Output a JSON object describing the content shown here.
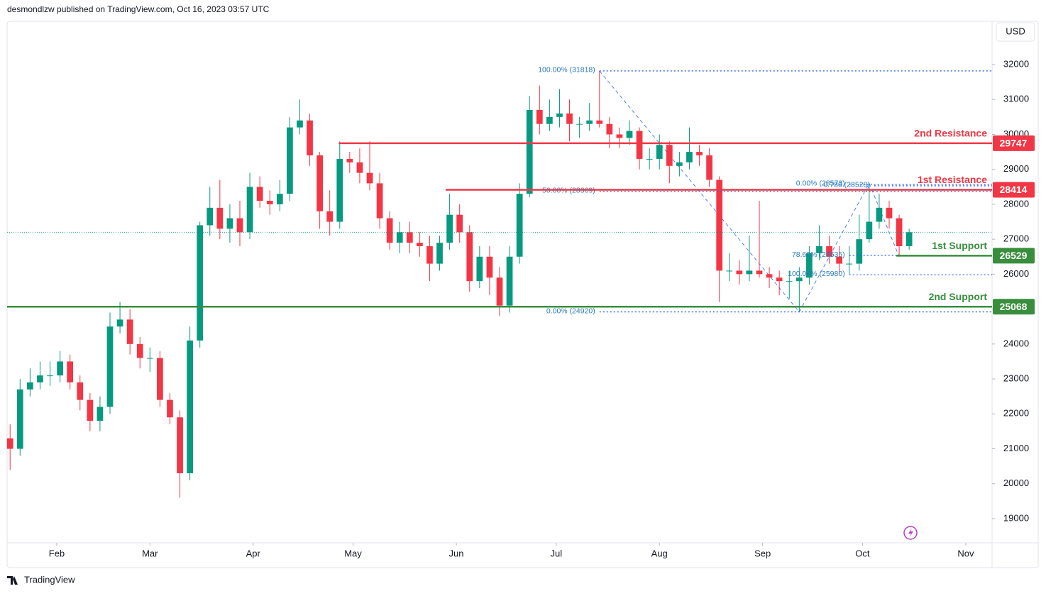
{
  "header": {
    "text": "desmondlzw published on TradingView.com, Oct 16, 2023 03:57 UTC"
  },
  "footer": {
    "brand": "TradingView"
  },
  "chart_data": {
    "type": "candlestick",
    "currency": "USD",
    "up_color": "#089981",
    "down_color": "#f23645",
    "xlim": [
      -0.3,
      98.3
    ],
    "xticks": [
      {
        "value": 4.67,
        "label": "Feb"
      },
      {
        "value": 14,
        "label": "Mar"
      },
      {
        "value": 24.33,
        "label": "Apr"
      },
      {
        "value": 34.33,
        "label": "May"
      },
      {
        "value": 44.67,
        "label": "Jun"
      },
      {
        "value": 54.67,
        "label": "Jul"
      },
      {
        "value": 65,
        "label": "Aug"
      },
      {
        "value": 75.33,
        "label": "Sep"
      },
      {
        "value": 85.33,
        "label": "Oct"
      },
      {
        "value": 95.67,
        "label": "Nov"
      }
    ],
    "ylim": [
      18309,
      33239
    ],
    "yticks": [
      19000,
      20000,
      21000,
      22000,
      23000,
      24000,
      25000,
      26000,
      27000,
      28000,
      29000,
      30000,
      31000,
      32000
    ],
    "open": [
      21300,
      21000,
      22700,
      22900,
      23100,
      23100,
      23500,
      22900,
      22400,
      21800,
      22200,
      24500,
      24700,
      24000,
      23600,
      23600,
      22400,
      21900,
      20300,
      24100,
      27400,
      27900,
      27300,
      27600,
      27200,
      28500,
      28100,
      28000,
      28300,
      30200,
      30400,
      29400,
      27800,
      27500,
      29300,
      29200,
      28900,
      28600,
      27600,
      26900,
      27200,
      26900,
      26800,
      26300,
      26900,
      27700,
      27200,
      25800,
      26500,
      25900,
      25100,
      26500,
      28300,
      30700,
      30300,
      30500,
      30600,
      30300,
      30300,
      30400,
      30300,
      30000,
      29900,
      30100,
      29300,
      29300,
      29700,
      29100,
      29200,
      29500,
      29400,
      28700,
      26100,
      26100,
      26000,
      26100,
      26000,
      25900,
      25800,
      25800,
      25900,
      26600,
      26800,
      26500,
      26300,
      26300,
      27000,
      27500,
      27900,
      27600,
      26800
    ],
    "high": [
      21700,
      23000,
      23300,
      23500,
      23500,
      23800,
      23700,
      23100,
      22600,
      22500,
      24900,
      25200,
      25000,
      24200,
      23900,
      23800,
      22600,
      22100,
      24500,
      27500,
      28500,
      28700,
      28000,
      28100,
      28900,
      28800,
      28400,
      28700,
      30500,
      31000,
      30600,
      29500,
      28400,
      29800,
      29500,
      29600,
      29800,
      28900,
      27800,
      27500,
      27500,
      27200,
      27100,
      27100,
      28300,
      28000,
      27400,
      26800,
      26800,
      26200,
      26800,
      28600,
      31100,
      31400,
      31000,
      31300,
      31000,
      30500,
      30900,
      31818,
      30500,
      30200,
      30400,
      30200,
      29600,
      30000,
      29800,
      29500,
      30200,
      29700,
      29600,
      28800,
      26600,
      26400,
      27100,
      28100,
      26200,
      26100,
      26100,
      26200,
      26800,
      27400,
      27100,
      26800,
      26800,
      27700,
      28600,
      28300,
      28100,
      27700,
      27300
    ],
    "low": [
      20400,
      20800,
      22500,
      22700,
      22800,
      22900,
      22700,
      22100,
      21500,
      21500,
      22000,
      24300,
      23700,
      23300,
      23200,
      22200,
      21700,
      19600,
      20100,
      23900,
      27100,
      27000,
      26900,
      26800,
      27000,
      27900,
      27700,
      27800,
      28100,
      30000,
      29100,
      27300,
      27100,
      27300,
      28900,
      28600,
      28400,
      27300,
      26700,
      26600,
      26600,
      26500,
      25800,
      26100,
      26700,
      26900,
      25500,
      25600,
      25400,
      24800,
      24900,
      26300,
      28200,
      30000,
      30100,
      30200,
      29800,
      29900,
      30100,
      30200,
      29600,
      29600,
      29700,
      29000,
      29000,
      29000,
      28600,
      28800,
      29000,
      29100,
      28500,
      25200,
      25800,
      25700,
      25800,
      25900,
      25600,
      25400,
      25300,
      24920,
      25700,
      26400,
      26300,
      26000,
      26000,
      26100,
      26900,
      27300,
      27300,
      26500,
      26700
    ],
    "close": [
      21000,
      22700,
      22900,
      23100,
      23100,
      23500,
      22900,
      22400,
      21800,
      22200,
      24500,
      24700,
      24000,
      23600,
      23600,
      22400,
      21900,
      20300,
      24100,
      27400,
      27900,
      27300,
      27600,
      27200,
      28500,
      28100,
      28000,
      28300,
      30200,
      30400,
      29400,
      27800,
      27500,
      29300,
      29200,
      28900,
      28600,
      27600,
      26900,
      27200,
      26900,
      26800,
      26300,
      26900,
      27700,
      27200,
      25800,
      26500,
      25900,
      25100,
      26500,
      28300,
      30700,
      30300,
      30500,
      30600,
      30300,
      30300,
      30400,
      30300,
      30000,
      29900,
      30100,
      29300,
      29300,
      29700,
      29100,
      29200,
      29500,
      29400,
      28700,
      26100,
      26100,
      26000,
      26100,
      26000,
      25900,
      25800,
      25800,
      25900,
      26600,
      26800,
      26500,
      26300,
      26300,
      27000,
      27500,
      27900,
      27600,
      26800,
      27200
    ],
    "levels": [
      {
        "label": "2nd Resistance",
        "value": 29747,
        "color": "#f23645",
        "from": 32.9
      },
      {
        "label": "1st Resistance",
        "value": 28414,
        "color": "#f23645",
        "from": 43.6
      },
      {
        "label": "1st Support",
        "value": 26529,
        "color": "#388e3c",
        "from": 88.7
      },
      {
        "label": "2nd Support",
        "value": 25068,
        "color": "#388e3c",
        "from": -0.3
      }
    ],
    "fib_levels": [
      {
        "label": "100.00% (31818)",
        "value": 31818,
        "from": 59
      },
      {
        "label": "50.00% (28369)",
        "value": 28369,
        "from": 59
      },
      {
        "label": "0.00% (24920)",
        "value": 24920,
        "from": 59
      },
      {
        "label": "0.00% (28573)",
        "value": 28573,
        "from": 84
      },
      {
        "label": "0.786 (28528)",
        "value": 28528,
        "from": 86.5
      },
      {
        "label": "78.60% (26535)",
        "value": 26535,
        "from": 84
      },
      {
        "label": "100.00% (25980)",
        "value": 25980,
        "from": 84
      }
    ],
    "fib_color": "#2962ff"
  }
}
